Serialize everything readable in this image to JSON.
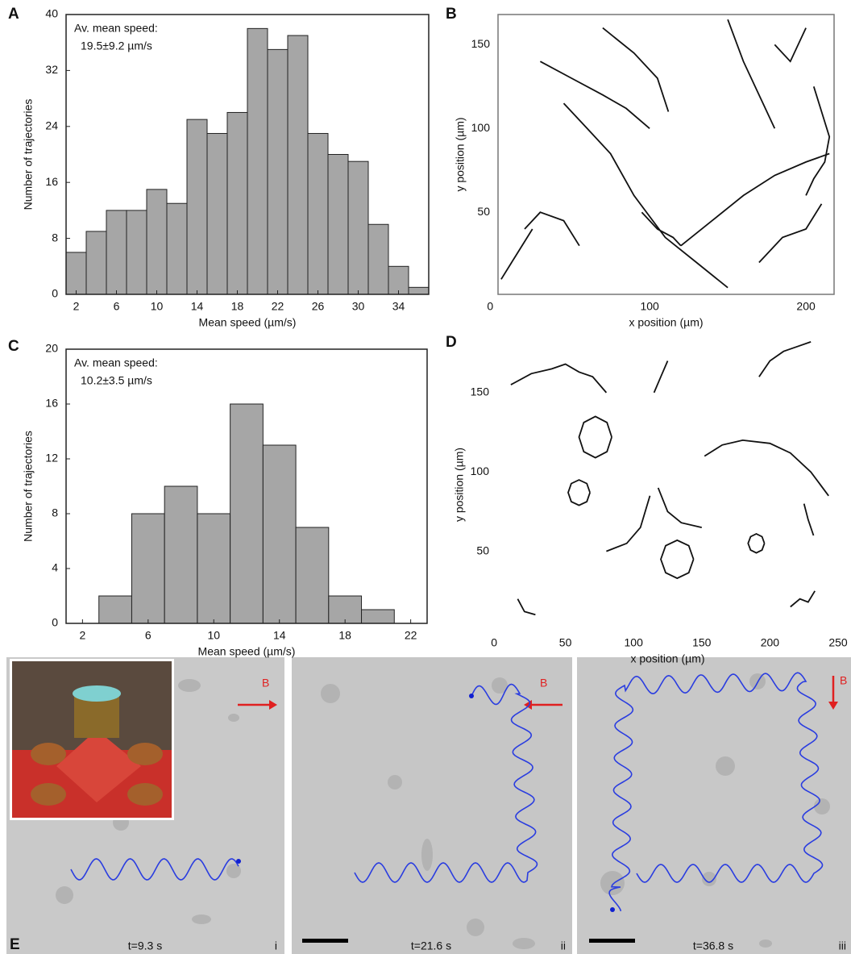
{
  "chart_data": [
    {
      "type": "histogram",
      "panel": "A",
      "annotation": [
        "Av. mean speed:",
        "19.5±9.2 µm/s"
      ],
      "xlabel": "Mean speed (µm/s)",
      "ylabel": "Number of trajectories",
      "bins": [
        1,
        3,
        5,
        7,
        9,
        11,
        13,
        15,
        17,
        19,
        21,
        23,
        25,
        27,
        29,
        31,
        33,
        35,
        37
      ],
      "values": [
        6,
        9,
        12,
        12,
        15,
        13,
        25,
        23,
        26,
        38,
        35,
        37,
        23,
        20,
        19,
        10,
        4,
        1
      ],
      "color": "#a6a6a6",
      "xlim": [
        1,
        37
      ],
      "ylim": [
        0,
        40
      ],
      "xticks": [
        2,
        6,
        10,
        14,
        18,
        22,
        26,
        30,
        34
      ],
      "yticks": [
        0,
        8,
        16,
        24,
        32,
        40
      ]
    },
    {
      "type": "line",
      "panel": "B",
      "xlabel": "x position (µm)",
      "ylabel": "y position (µm)",
      "xlim": [
        3,
        218
      ],
      "ylim": [
        1,
        168
      ],
      "xticks": [
        0,
        100,
        200
      ],
      "yticks": [
        50,
        100,
        150
      ],
      "series": [
        {
          "color": "#111111",
          "x": [
            45,
            60,
            75,
            90,
            110,
            130,
            150
          ],
          "values": [
            115,
            100,
            85,
            60,
            35,
            20,
            5
          ]
        },
        {
          "color": "#111111",
          "x": [
            30,
            50,
            70,
            85,
            100
          ],
          "values": [
            140,
            130,
            120,
            112,
            100
          ]
        },
        {
          "color": "#111111",
          "x": [
            120,
            140,
            160,
            180,
            200,
            215
          ],
          "values": [
            30,
            45,
            60,
            72,
            80,
            85
          ]
        },
        {
          "color": "#111111",
          "x": [
            205,
            210,
            215,
            212,
            205,
            200
          ],
          "values": [
            125,
            110,
            95,
            80,
            70,
            60
          ]
        },
        {
          "color": "#111111",
          "x": [
            70,
            90,
            105,
            112
          ],
          "values": [
            160,
            145,
            130,
            110
          ]
        },
        {
          "color": "#111111",
          "x": [
            150,
            160,
            170,
            180
          ],
          "values": [
            165,
            140,
            120,
            100
          ]
        },
        {
          "color": "#111111",
          "x": [
            20,
            30,
            45,
            55
          ],
          "values": [
            40,
            50,
            45,
            30
          ]
        },
        {
          "color": "#111111",
          "x": [
            170,
            185,
            200,
            210
          ],
          "values": [
            20,
            35,
            40,
            55
          ]
        },
        {
          "color": "#111111",
          "x": [
            95,
            105,
            115,
            120
          ],
          "values": [
            50,
            40,
            35,
            30
          ]
        },
        {
          "color": "#111111",
          "x": [
            5,
            15,
            25
          ],
          "values": [
            10,
            25,
            40
          ]
        },
        {
          "color": "#111111",
          "x": [
            180,
            190,
            200
          ],
          "values": [
            150,
            140,
            160
          ]
        }
      ]
    },
    {
      "type": "histogram",
      "panel": "C",
      "annotation": [
        "Av. mean speed:",
        "10.2±3.5 µm/s"
      ],
      "xlabel": "Mean speed (µm/s)",
      "ylabel": "Number of trajectories",
      "bins": [
        3,
        5,
        7,
        9,
        11,
        13,
        15,
        17,
        19,
        21
      ],
      "values": [
        2,
        8,
        10,
        8,
        16,
        13,
        7,
        2,
        1
      ],
      "color": "#a6a6a6",
      "xlim": [
        1,
        23
      ],
      "ylim": [
        0,
        20
      ],
      "xticks": [
        2,
        6,
        10,
        14,
        18,
        22
      ],
      "yticks": [
        0,
        4,
        8,
        12,
        16,
        20
      ]
    },
    {
      "type": "line",
      "panel": "D",
      "xlabel": "x position (µm)",
      "ylabel": "y position (µm)",
      "xlim": [
        0,
        250
      ],
      "ylim": [
        0,
        184
      ],
      "xticks": [
        0,
        50,
        100,
        150,
        200,
        250
      ],
      "yticks": [
        50,
        100,
        150
      ],
      "series": [
        {
          "color": "#111111",
          "x": [
            10,
            25,
            40,
            50,
            60,
            70,
            80
          ],
          "values": [
            155,
            162,
            165,
            168,
            163,
            160,
            150
          ]
        },
        {
          "color": "#111111",
          "x": [
            152,
            165,
            180,
            200,
            215,
            230,
            243
          ],
          "values": [
            110,
            117,
            120,
            118,
            112,
            100,
            85
          ]
        },
        {
          "color": "#111111",
          "x": [
            192,
            200,
            210,
            220,
            230
          ],
          "values": [
            160,
            170,
            176,
            179,
            182
          ]
        },
        {
          "color": "#111111",
          "x": [
            84,
            80.5,
            72,
            63.5,
            60,
            63.5,
            72,
            80.5,
            84
          ],
          "values": [
            122,
            131.2,
            135,
            131.2,
            122,
            112.8,
            109,
            112.8,
            122
          ]
        },
        {
          "color": "#111111",
          "x": [
            68,
            65.7,
            60,
            54.3,
            52,
            54.3,
            60,
            65.7,
            68
          ],
          "values": [
            87,
            92.7,
            95,
            92.7,
            87,
            81.3,
            79,
            81.3,
            87
          ]
        },
        {
          "color": "#111111",
          "x": [
            144,
            140.5,
            132,
            123.5,
            120,
            123.5,
            132,
            140.5,
            144
          ],
          "values": [
            45,
            53.5,
            57,
            53.5,
            45,
            36.5,
            33,
            36.5,
            45
          ]
        },
        {
          "color": "#111111",
          "x": [
            196,
            194.2,
            190,
            185.8,
            184,
            185.8,
            190,
            194.2,
            196
          ],
          "values": [
            55,
            59.2,
            61,
            59.2,
            55,
            50.8,
            49,
            50.8,
            55
          ]
        },
        {
          "color": "#111111",
          "x": [
            118,
            125,
            135,
            150
          ],
          "values": [
            90,
            75,
            68,
            65
          ]
        },
        {
          "color": "#111111",
          "x": [
            80,
            95,
            105,
            112
          ],
          "values": [
            50,
            55,
            65,
            85
          ]
        },
        {
          "color": "#111111",
          "x": [
            215,
            222,
            228,
            233
          ],
          "values": [
            15,
            20,
            18,
            25
          ]
        },
        {
          "color": "#111111",
          "x": [
            15,
            20,
            28
          ],
          "values": [
            20,
            12,
            10
          ]
        },
        {
          "color": "#111111",
          "x": [
            115,
            120,
            125
          ],
          "values": [
            150,
            160,
            170
          ]
        },
        {
          "color": "#111111",
          "x": [
            225,
            228,
            232
          ],
          "values": [
            80,
            70,
            60
          ]
        }
      ]
    }
  ],
  "panel_e": {
    "label": "E",
    "frames": [
      {
        "field": "B",
        "time": "t=9.3 s",
        "index": "i"
      },
      {
        "field": "B",
        "time": "t=21.6 s",
        "index": "ii"
      },
      {
        "field": "B",
        "time": "t=36.8 s",
        "index": "iii"
      }
    ]
  }
}
